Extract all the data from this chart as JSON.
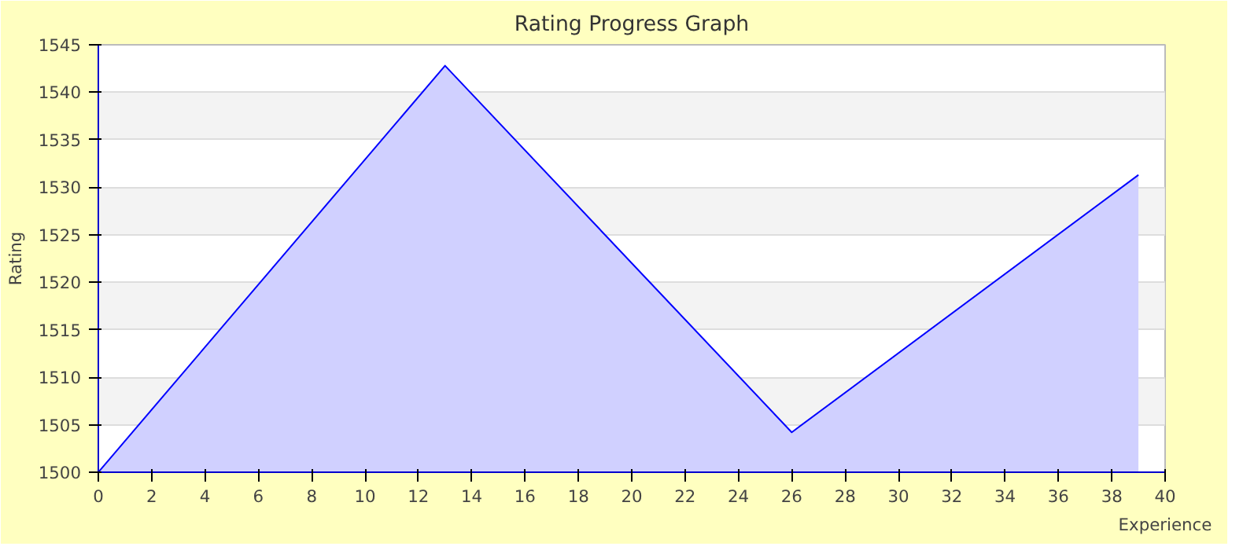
{
  "chart_data": {
    "type": "area",
    "title": "Rating Progress Graph",
    "xlabel": "Experience",
    "ylabel": "Rating",
    "x": [
      0,
      13,
      26,
      39
    ],
    "series": [
      {
        "color": "#0000ff",
        "values": [
          1500,
          1542.8,
          1504.2,
          1531.3
        ]
      }
    ],
    "xlim": [
      0,
      40
    ],
    "ylim": [
      1500,
      1545
    ],
    "xticks": [
      0,
      2,
      4,
      6,
      8,
      10,
      12,
      14,
      16,
      18,
      20,
      22,
      24,
      26,
      28,
      30,
      32,
      34,
      36,
      38,
      40
    ],
    "yticks": [
      1500,
      1505,
      1510,
      1515,
      1520,
      1525,
      1530,
      1535,
      1540,
      1545
    ],
    "grid": "y",
    "marker": "none",
    "line_style": "solid"
  }
}
